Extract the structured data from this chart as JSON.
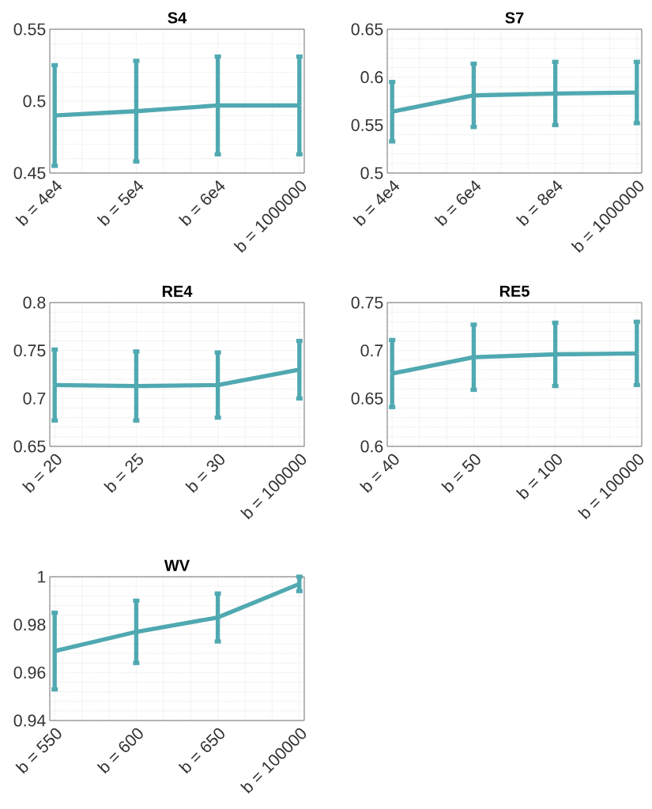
{
  "chart_data": [
    {
      "type": "line",
      "title": "S4",
      "categories": [
        "b = 4e4",
        "b = 5e4",
        "b = 6e4",
        "b = 1000000"
      ],
      "values": [
        0.49,
        0.493,
        0.497,
        0.497
      ],
      "errors": [
        0.035,
        0.035,
        0.034,
        0.034
      ],
      "color": "#50a9b1",
      "ylim": [
        0.45,
        0.55
      ],
      "yticks": [
        0.45,
        0.5,
        0.55
      ],
      "grid": true
    },
    {
      "type": "line",
      "title": "S7",
      "categories": [
        "b = 4e4",
        "b = 6e4",
        "b = 8e4",
        "b = 1000000"
      ],
      "values": [
        0.564,
        0.581,
        0.583,
        0.584
      ],
      "errors": [
        0.031,
        0.033,
        0.033,
        0.032
      ],
      "color": "#50a9b1",
      "ylim": [
        0.5,
        0.65
      ],
      "yticks": [
        0.5,
        0.55,
        0.6,
        0.65
      ],
      "grid": true
    },
    {
      "type": "line",
      "title": "RE4",
      "categories": [
        "b = 20",
        "b = 25",
        "b = 30",
        "b = 100000"
      ],
      "values": [
        0.714,
        0.713,
        0.714,
        0.73
      ],
      "errors": [
        0.037,
        0.036,
        0.034,
        0.03
      ],
      "color": "#50a9b1",
      "ylim": [
        0.65,
        0.8
      ],
      "yticks": [
        0.65,
        0.7,
        0.75,
        0.8
      ],
      "grid": true
    },
    {
      "type": "line",
      "title": "RE5",
      "categories": [
        "b = 40",
        "b = 50",
        "b = 100",
        "b = 100000"
      ],
      "values": [
        0.676,
        0.693,
        0.696,
        0.697
      ],
      "errors": [
        0.035,
        0.034,
        0.033,
        0.033
      ],
      "color": "#50a9b1",
      "ylim": [
        0.6,
        0.75
      ],
      "yticks": [
        0.6,
        0.65,
        0.7,
        0.75
      ],
      "grid": true
    },
    {
      "type": "line",
      "title": "WV",
      "categories": [
        "b = 550",
        "b = 600",
        "b = 650",
        "b = 100000"
      ],
      "values": [
        0.969,
        0.977,
        0.983,
        0.997
      ],
      "errors": [
        0.016,
        0.013,
        0.01,
        0.003
      ],
      "color": "#50a9b1",
      "ylim": [
        0.94,
        1
      ],
      "yticks": [
        0.94,
        0.96,
        0.98,
        1
      ],
      "grid": true
    }
  ]
}
